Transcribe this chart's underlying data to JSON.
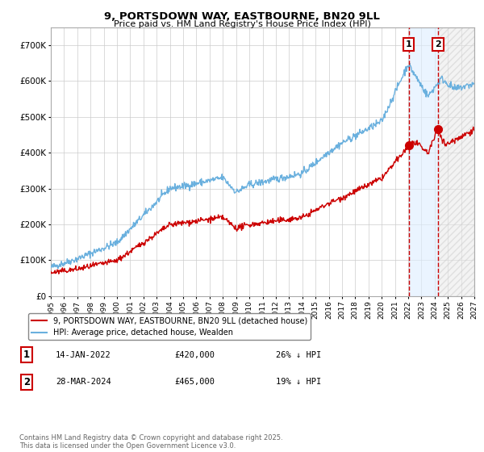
{
  "title_line1": "9, PORTSDOWN WAY, EASTBOURNE, BN20 9LL",
  "title_line2": "Price paid vs. HM Land Registry's House Price Index (HPI)",
  "ylim": [
    0,
    750000
  ],
  "xlim": [
    1995,
    2027
  ],
  "yticks": [
    0,
    100000,
    200000,
    300000,
    400000,
    500000,
    600000,
    700000
  ],
  "ytick_labels": [
    "£0",
    "£100K",
    "£200K",
    "£300K",
    "£400K",
    "£500K",
    "£600K",
    "£700K"
  ],
  "hpi_color": "#6ab0de",
  "property_color": "#cc0000",
  "sale1_year": 2022.04,
  "sale1_price": 420000,
  "sale1_label": "1",
  "sale1_date": "14-JAN-2022",
  "sale1_pct": "26% ↓ HPI",
  "sale2_year": 2024.25,
  "sale2_price": 465000,
  "sale2_label": "2",
  "sale2_date": "28-MAR-2024",
  "sale2_pct": "19% ↓ HPI",
  "legend_property": "9, PORTSDOWN WAY, EASTBOURNE, BN20 9LL (detached house)",
  "legend_hpi": "HPI: Average price, detached house, Wealden",
  "footnote": "Contains HM Land Registry data © Crown copyright and database right 2025.\nThis data is licensed under the Open Government Licence v3.0.",
  "background_color": "#ffffff",
  "grid_color": "#cccccc",
  "fill_between_color": "#ddeeff",
  "hatch_color": "#cccccc",
  "hatch_fill": "#e8e8e8"
}
